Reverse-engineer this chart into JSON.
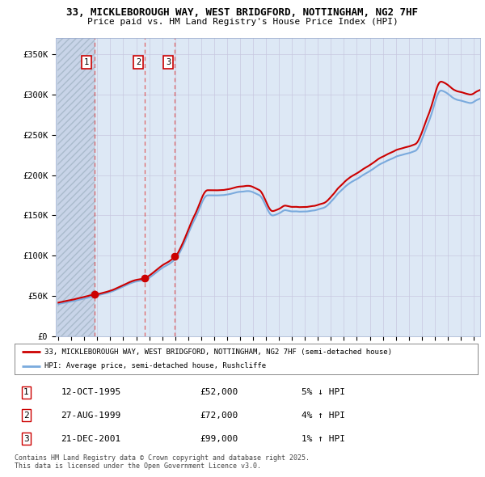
{
  "title_line1": "33, MICKLEBOROUGH WAY, WEST BRIDGFORD, NOTTINGHAM, NG2 7HF",
  "title_line2": "Price paid vs. HM Land Registry's House Price Index (HPI)",
  "legend_line1": "33, MICKLEBOROUGH WAY, WEST BRIDGFORD, NOTTINGHAM, NG2 7HF (semi-detached house)",
  "legend_line2": "HPI: Average price, semi-detached house, Rushcliffe",
  "transactions": [
    {
      "num": 1,
      "date": "12-OCT-1995",
      "price": 52000,
      "pct": "5%",
      "dir": "↓"
    },
    {
      "num": 2,
      "date": "27-AUG-1999",
      "price": 72000,
      "pct": "4%",
      "dir": "↑"
    },
    {
      "num": 3,
      "date": "21-DEC-2001",
      "price": 99000,
      "pct": "1%",
      "dir": "↑"
    }
  ],
  "transaction_dates_decimal": [
    1995.78,
    1999.65,
    2001.97
  ],
  "transaction_prices": [
    52000,
    72000,
    99000
  ],
  "hpi_color": "#7aaadd",
  "price_color": "#cc0000",
  "marker_color": "#cc0000",
  "dashed_line_color": "#dd4444",
  "grid_color": "#c8c8e0",
  "chart_bg": "#dde8f5",
  "hatch_bg": "#c8d4e8",
  "ylim": [
    0,
    370000
  ],
  "yticks": [
    0,
    50000,
    100000,
    150000,
    200000,
    250000,
    300000,
    350000
  ],
  "ytick_labels": [
    "£0",
    "£50K",
    "£100K",
    "£150K",
    "£200K",
    "£250K",
    "£300K",
    "£350K"
  ],
  "footnote": "Contains HM Land Registry data © Crown copyright and database right 2025.\nThis data is licensed under the Open Government Licence v3.0.",
  "start_year": 1993,
  "end_year": 2025
}
